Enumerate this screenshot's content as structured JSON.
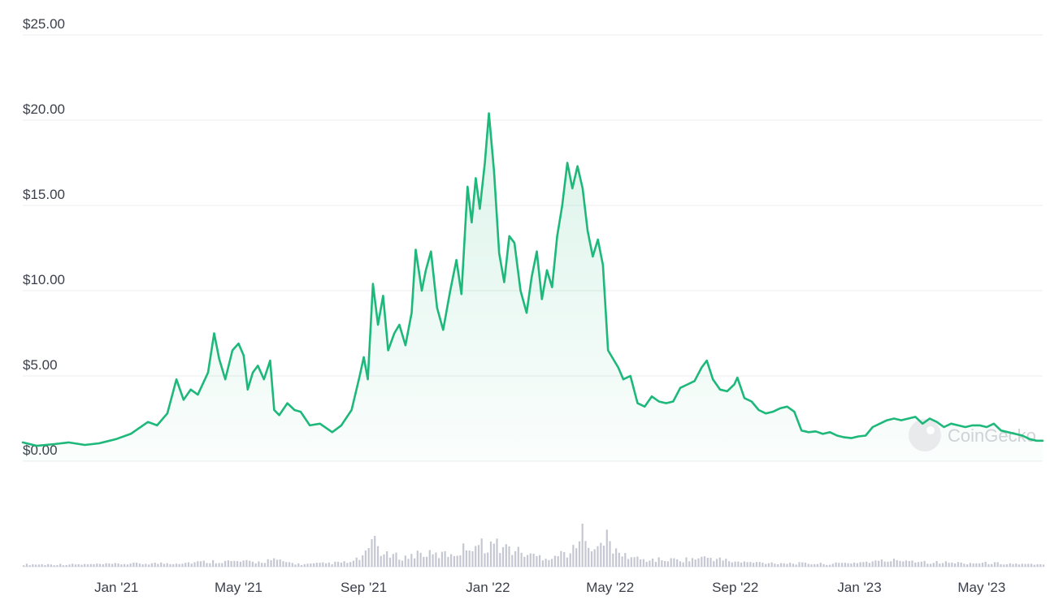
{
  "chart_data": {
    "type": "area",
    "y_axis": {
      "min": 0,
      "max": 25,
      "ticks": [
        0,
        5,
        10,
        15,
        20,
        25
      ],
      "tick_labels": [
        "$0.00",
        "$5.00",
        "$10.00",
        "$15.00",
        "$20.00",
        "$25.00"
      ]
    },
    "x_axis": {
      "start": "2020-10-01",
      "end": "2023-06-30",
      "ticks": [
        "2021-01-01",
        "2021-05-01",
        "2021-09-01",
        "2022-01-01",
        "2022-05-01",
        "2022-09-01",
        "2023-01-01",
        "2023-05-01"
      ],
      "tick_labels": [
        "Jan '21",
        "May '21",
        "Sep '21",
        "Jan '22",
        "May '22",
        "Sep '22",
        "Jan '23",
        "May '23"
      ]
    },
    "grid": true,
    "line_color": "#1db87a",
    "price": [
      [
        "2020-10-01",
        1.1
      ],
      [
        "2020-10-15",
        0.9
      ],
      [
        "2020-11-01",
        1.0
      ],
      [
        "2020-11-15",
        1.1
      ],
      [
        "2020-12-01",
        0.95
      ],
      [
        "2020-12-15",
        1.05
      ],
      [
        "2021-01-01",
        1.3
      ],
      [
        "2021-01-15",
        1.6
      ],
      [
        "2021-02-01",
        2.3
      ],
      [
        "2021-02-10",
        2.1
      ],
      [
        "2021-02-20",
        2.8
      ],
      [
        "2021-03-01",
        4.8
      ],
      [
        "2021-03-08",
        3.6
      ],
      [
        "2021-03-15",
        4.2
      ],
      [
        "2021-03-22",
        3.9
      ],
      [
        "2021-04-01",
        5.2
      ],
      [
        "2021-04-07",
        7.5
      ],
      [
        "2021-04-12",
        6.0
      ],
      [
        "2021-04-18",
        4.8
      ],
      [
        "2021-04-25",
        6.5
      ],
      [
        "2021-05-01",
        6.9
      ],
      [
        "2021-05-06",
        6.2
      ],
      [
        "2021-05-10",
        4.2
      ],
      [
        "2021-05-15",
        5.2
      ],
      [
        "2021-05-20",
        5.6
      ],
      [
        "2021-05-26",
        4.8
      ],
      [
        "2021-06-01",
        5.9
      ],
      [
        "2021-06-05",
        3.0
      ],
      [
        "2021-06-10",
        2.7
      ],
      [
        "2021-06-18",
        3.4
      ],
      [
        "2021-06-25",
        3.0
      ],
      [
        "2021-07-01",
        2.9
      ],
      [
        "2021-07-10",
        2.1
      ],
      [
        "2021-07-20",
        2.2
      ],
      [
        "2021-08-01",
        1.7
      ],
      [
        "2021-08-10",
        2.1
      ],
      [
        "2021-08-20",
        3.0
      ],
      [
        "2021-08-28",
        5.0
      ],
      [
        "2021-09-01",
        6.1
      ],
      [
        "2021-09-05",
        4.8
      ],
      [
        "2021-09-10",
        10.4
      ],
      [
        "2021-09-15",
        8.0
      ],
      [
        "2021-09-20",
        9.7
      ],
      [
        "2021-09-25",
        6.5
      ],
      [
        "2021-10-01",
        7.5
      ],
      [
        "2021-10-06",
        8.0
      ],
      [
        "2021-10-12",
        6.8
      ],
      [
        "2021-10-18",
        8.7
      ],
      [
        "2021-10-22",
        12.4
      ],
      [
        "2021-10-28",
        10.0
      ],
      [
        "2021-11-01",
        11.2
      ],
      [
        "2021-11-06",
        12.3
      ],
      [
        "2021-11-12",
        9.0
      ],
      [
        "2021-11-18",
        7.7
      ],
      [
        "2021-11-25",
        10.0
      ],
      [
        "2021-12-01",
        11.8
      ],
      [
        "2021-12-06",
        9.8
      ],
      [
        "2021-12-12",
        16.1
      ],
      [
        "2021-12-16",
        14.0
      ],
      [
        "2021-12-20",
        16.6
      ],
      [
        "2021-12-24",
        14.8
      ],
      [
        "2021-12-29",
        17.5
      ],
      [
        "2022-01-02",
        20.4
      ],
      [
        "2022-01-07",
        17.0
      ],
      [
        "2022-01-12",
        12.2
      ],
      [
        "2022-01-17",
        10.5
      ],
      [
        "2022-01-22",
        13.2
      ],
      [
        "2022-01-27",
        12.8
      ],
      [
        "2022-02-02",
        10.0
      ],
      [
        "2022-02-08",
        8.7
      ],
      [
        "2022-02-13",
        10.8
      ],
      [
        "2022-02-18",
        12.3
      ],
      [
        "2022-02-23",
        9.5
      ],
      [
        "2022-02-28",
        11.2
      ],
      [
        "2022-03-05",
        10.2
      ],
      [
        "2022-03-10",
        13.2
      ],
      [
        "2022-03-15",
        15.0
      ],
      [
        "2022-03-20",
        17.5
      ],
      [
        "2022-03-25",
        16.0
      ],
      [
        "2022-03-30",
        17.3
      ],
      [
        "2022-04-04",
        16.0
      ],
      [
        "2022-04-09",
        13.5
      ],
      [
        "2022-04-14",
        12.0
      ],
      [
        "2022-04-19",
        13.0
      ],
      [
        "2022-04-24",
        11.5
      ],
      [
        "2022-04-29",
        6.5
      ],
      [
        "2022-05-04",
        6.0
      ],
      [
        "2022-05-09",
        5.5
      ],
      [
        "2022-05-14",
        4.8
      ],
      [
        "2022-05-21",
        5.0
      ],
      [
        "2022-05-28",
        3.4
      ],
      [
        "2022-06-04",
        3.2
      ],
      [
        "2022-06-11",
        3.8
      ],
      [
        "2022-06-18",
        3.5
      ],
      [
        "2022-06-25",
        3.4
      ],
      [
        "2022-07-02",
        3.5
      ],
      [
        "2022-07-09",
        4.3
      ],
      [
        "2022-07-16",
        4.5
      ],
      [
        "2022-07-23",
        4.7
      ],
      [
        "2022-07-30",
        5.5
      ],
      [
        "2022-08-04",
        5.9
      ],
      [
        "2022-08-10",
        4.8
      ],
      [
        "2022-08-17",
        4.2
      ],
      [
        "2022-08-24",
        4.1
      ],
      [
        "2022-08-31",
        4.5
      ],
      [
        "2022-09-03",
        4.9
      ],
      [
        "2022-09-10",
        3.7
      ],
      [
        "2022-09-17",
        3.5
      ],
      [
        "2022-09-24",
        3.0
      ],
      [
        "2022-10-01",
        2.8
      ],
      [
        "2022-10-08",
        2.9
      ],
      [
        "2022-10-15",
        3.1
      ],
      [
        "2022-10-22",
        3.2
      ],
      [
        "2022-10-29",
        2.9
      ],
      [
        "2022-11-05",
        1.8
      ],
      [
        "2022-11-12",
        1.7
      ],
      [
        "2022-11-19",
        1.75
      ],
      [
        "2022-11-26",
        1.6
      ],
      [
        "2022-12-03",
        1.7
      ],
      [
        "2022-12-10",
        1.5
      ],
      [
        "2022-12-17",
        1.4
      ],
      [
        "2022-12-24",
        1.35
      ],
      [
        "2022-12-31",
        1.45
      ],
      [
        "2023-01-07",
        1.5
      ],
      [
        "2023-01-14",
        2.0
      ],
      [
        "2023-01-21",
        2.2
      ],
      [
        "2023-01-28",
        2.4
      ],
      [
        "2023-02-04",
        2.5
      ],
      [
        "2023-02-11",
        2.4
      ],
      [
        "2023-02-18",
        2.5
      ],
      [
        "2023-02-25",
        2.6
      ],
      [
        "2023-03-04",
        2.2
      ],
      [
        "2023-03-11",
        2.5
      ],
      [
        "2023-03-18",
        2.3
      ],
      [
        "2023-03-25",
        2.0
      ],
      [
        "2023-04-01",
        2.2
      ],
      [
        "2023-04-08",
        2.1
      ],
      [
        "2023-04-15",
        2.0
      ],
      [
        "2023-04-22",
        2.1
      ],
      [
        "2023-04-29",
        2.1
      ],
      [
        "2023-05-06",
        2.0
      ],
      [
        "2023-05-13",
        2.2
      ],
      [
        "2023-05-20",
        1.8
      ],
      [
        "2023-05-27",
        1.7
      ],
      [
        "2023-06-03",
        1.6
      ],
      [
        "2023-06-10",
        1.5
      ],
      [
        "2023-06-17",
        1.3
      ],
      [
        "2023-06-24",
        1.2
      ],
      [
        "2023-06-30",
        1.2
      ]
    ],
    "volume_relative": [
      [
        "2020-10-01",
        0.05
      ],
      [
        "2020-12-01",
        0.05
      ],
      [
        "2021-01-01",
        0.06
      ],
      [
        "2021-03-01",
        0.08
      ],
      [
        "2021-04-10",
        0.12
      ],
      [
        "2021-05-20",
        0.1
      ],
      [
        "2021-06-01",
        0.15
      ],
      [
        "2021-07-01",
        0.05
      ],
      [
        "2021-08-20",
        0.1
      ],
      [
        "2021-09-05",
        0.3
      ],
      [
        "2021-09-10",
        0.8
      ],
      [
        "2021-09-12",
        0.5
      ],
      [
        "2021-09-20",
        0.25
      ],
      [
        "2021-10-15",
        0.2
      ],
      [
        "2021-10-22",
        0.3
      ],
      [
        "2021-11-10",
        0.25
      ],
      [
        "2021-12-01",
        0.3
      ],
      [
        "2021-12-15",
        0.5
      ],
      [
        "2022-01-01",
        0.45
      ],
      [
        "2022-01-05",
        0.5
      ],
      [
        "2022-01-20",
        0.4
      ],
      [
        "2022-02-10",
        0.25
      ],
      [
        "2022-03-01",
        0.2
      ],
      [
        "2022-03-25",
        0.35
      ],
      [
        "2022-04-01",
        0.5
      ],
      [
        "2022-04-05",
        1.0
      ],
      [
        "2022-04-10",
        0.5
      ],
      [
        "2022-04-22",
        0.4
      ],
      [
        "2022-04-28",
        0.7
      ],
      [
        "2022-05-05",
        0.3
      ],
      [
        "2022-06-01",
        0.15
      ],
      [
        "2022-07-10",
        0.15
      ],
      [
        "2022-08-05",
        0.2
      ],
      [
        "2022-09-01",
        0.1
      ],
      [
        "2022-10-15",
        0.08
      ],
      [
        "2022-12-01",
        0.06
      ],
      [
        "2023-01-20",
        0.12
      ],
      [
        "2023-02-15",
        0.15
      ],
      [
        "2023-03-10",
        0.1
      ],
      [
        "2023-04-15",
        0.08
      ],
      [
        "2023-05-10",
        0.08
      ],
      [
        "2023-06-30",
        0.04
      ]
    ]
  },
  "watermark": {
    "text": "CoinGecko",
    "icon": "gecko-logo-icon"
  }
}
